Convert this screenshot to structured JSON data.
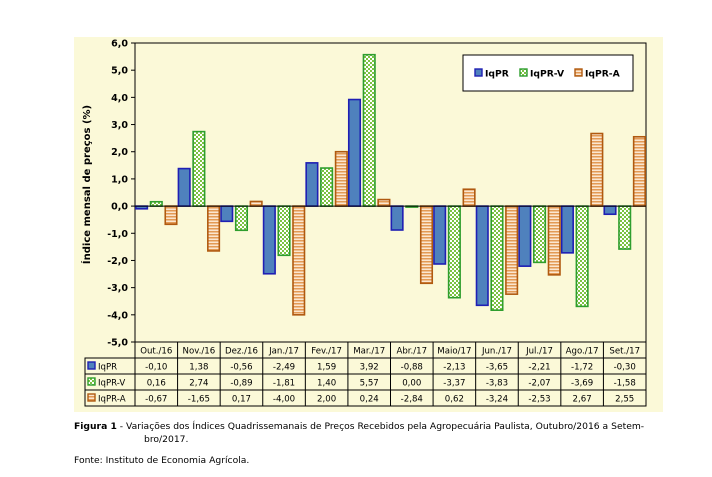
{
  "chart_data": {
    "type": "bar",
    "categories": [
      "Out./16",
      "Nov./16",
      "Dez./16",
      "Jan./17",
      "Fev./17",
      "Mar./17",
      "Abr./17",
      "Maio/17",
      "Jun./17",
      "Jul./17",
      "Ago./17",
      "Set./17"
    ],
    "series": [
      {
        "name": "IqPR",
        "values": [
          -0.1,
          1.38,
          -0.56,
          -2.49,
          1.59,
          3.92,
          -0.88,
          -2.13,
          -3.65,
          -2.21,
          -1.72,
          -0.3
        ],
        "color": "#4f81bd",
        "edge": "#1f1fb4",
        "pattern": "solid"
      },
      {
        "name": "IqPR-V",
        "values": [
          0.16,
          2.74,
          -0.89,
          -1.81,
          1.4,
          5.57,
          0.0,
          -3.37,
          -3.83,
          -2.07,
          -3.69,
          -1.58
        ],
        "color": "#8cc63f",
        "edge": "#2e9e2e",
        "pattern": "checker"
      },
      {
        "name": "IqPR-A",
        "values": [
          -0.67,
          -1.65,
          0.17,
          -4.0,
          2.0,
          0.24,
          -2.84,
          0.62,
          -3.24,
          -2.53,
          2.67,
          2.55
        ],
        "color": "#e8a060",
        "edge": "#b05a10",
        "pattern": "stripes"
      }
    ],
    "table_values": [
      [
        "-0,10",
        "1,38",
        "-0,56",
        "-2,49",
        "1,59",
        "3,92",
        "-0,88",
        "-2,13",
        "-3,65",
        "-2,21",
        "-1,72",
        "-0,30"
      ],
      [
        "0,16",
        "2,74",
        "-0,89",
        "-1,81",
        "1,40",
        "5,57",
        "0,00",
        "-3,37",
        "-3,83",
        "-2,07",
        "-3,69",
        "-1,58"
      ],
      [
        "-0,67",
        "-1,65",
        "0,17",
        "-4,00",
        "2,00",
        "0,24",
        "-2,84",
        "0,62",
        "-3,24",
        "-2,53",
        "2,67",
        "2,55"
      ]
    ],
    "ylabel": "Índice mensal de preços (%)",
    "ylim": [
      -5,
      6
    ],
    "yticks": [
      "6,0",
      "5,0",
      "4,0",
      "3,0",
      "2,0",
      "1,0",
      "0,0",
      "-1,0",
      "-2,0",
      "-3,0",
      "-4,0",
      "-5,0"
    ],
    "ytick_values": [
      6,
      5,
      4,
      3,
      2,
      1,
      0,
      -1,
      -2,
      -3,
      -4,
      -5
    ],
    "legend_position": "top-right",
    "plot_background": "#fbf9d8",
    "grid": false
  },
  "caption": {
    "label": "Figura 1",
    "text_line1": " - Variações dos Índices Quadrissemanais de Preços Recebidos pela Agropecuária Paulista, Outubro/2016 a Setem-",
    "text_line2": "bro/2017."
  },
  "source": "Fonte: Instituto de Economia Agrícola."
}
